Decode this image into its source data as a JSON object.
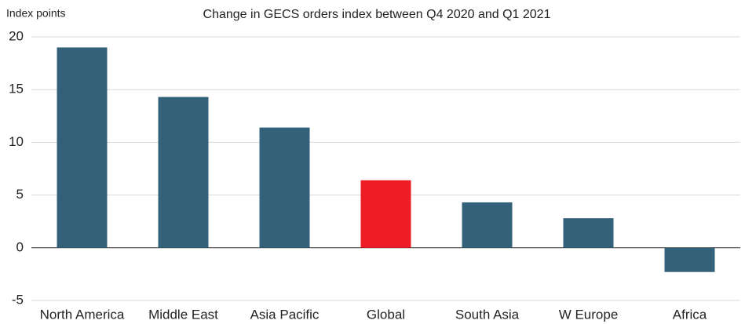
{
  "chart_data": {
    "type": "bar",
    "title": "Change in GECS orders index between Q4 2020 and Q1 2021",
    "y_label": "Index points",
    "categories": [
      "North America",
      "Middle East",
      "Asia Pacific",
      "Global",
      "South Asia",
      "W Europe",
      "Africa"
    ],
    "values": [
      19,
      14.3,
      11.4,
      6.4,
      4.3,
      2.8,
      -2.3
    ],
    "colors": [
      "#336179",
      "#336179",
      "#336179",
      "#ee1c25",
      "#336179",
      "#336179",
      "#336179"
    ],
    "ylim": [
      -5,
      20
    ],
    "yticks": [
      -5,
      0,
      5,
      10,
      15,
      20
    ],
    "grid": true
  }
}
